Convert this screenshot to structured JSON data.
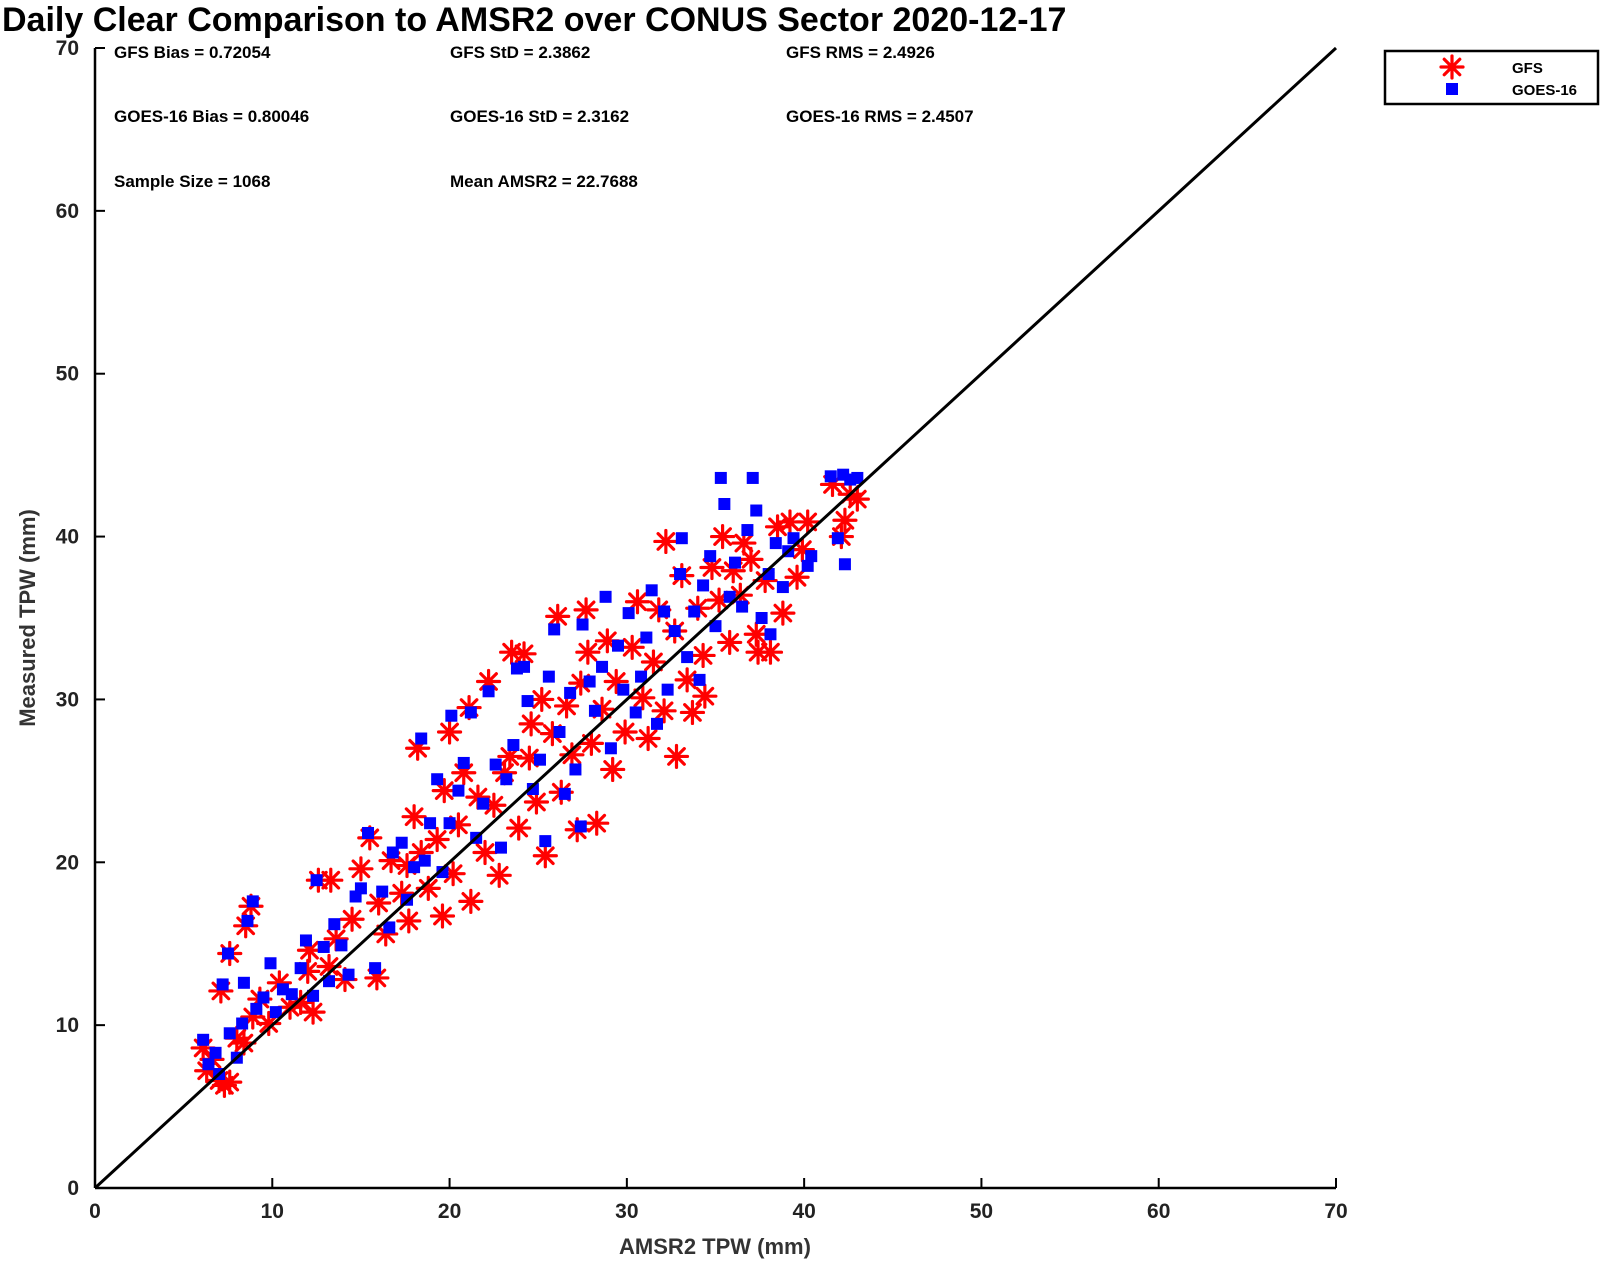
{
  "chart_data": {
    "type": "scatter",
    "title": "Daily Clear Comparison to AMSR2 over CONUS Sector 2020-12-17",
    "xlabel": "AMSR2 TPW (mm)",
    "ylabel": "Measured TPW (mm)",
    "xlim": [
      0,
      70
    ],
    "ylim": [
      0,
      70
    ],
    "xticks": [
      "0",
      "10",
      "20",
      "30",
      "40",
      "50",
      "60",
      "70"
    ],
    "yticks": [
      "0",
      "10",
      "20",
      "30",
      "40",
      "50",
      "60",
      "70"
    ],
    "grid": false,
    "legend_position": "outside-top-right",
    "reference_line": "1:1",
    "stats": [
      "GFS Bias = 0.72054",
      "GFS StD = 2.3862",
      "GFS RMS = 2.4926",
      "GOES-16 Bias = 0.80046",
      "GOES-16 StD = 2.3162",
      "GOES-16 RMS = 2.4507",
      "Sample Size = 1068",
      "Mean AMSR2 = 22.7688"
    ],
    "series": [
      {
        "name": "GFS",
        "color": "#ff0000",
        "marker": "asterisk",
        "points": [
          [
            6.1,
            8.6
          ],
          [
            6.3,
            7.2
          ],
          [
            6.6,
            7.9
          ],
          [
            7.0,
            6.6
          ],
          [
            7.3,
            6.3
          ],
          [
            7.6,
            6.5
          ],
          [
            7.1,
            12.1
          ],
          [
            7.6,
            14.4
          ],
          [
            8.0,
            9.2
          ],
          [
            8.4,
            8.9
          ],
          [
            8.5,
            16.1
          ],
          [
            8.8,
            17.3
          ],
          [
            8.9,
            10.5
          ],
          [
            9.3,
            11.6
          ],
          [
            9.8,
            10.1
          ],
          [
            10.4,
            12.6
          ],
          [
            11.0,
            11.1
          ],
          [
            11.6,
            11.4
          ],
          [
            12.0,
            13.3
          ],
          [
            12.1,
            14.6
          ],
          [
            12.3,
            10.8
          ],
          [
            12.6,
            18.9
          ],
          [
            13.3,
            18.9
          ],
          [
            13.2,
            13.6
          ],
          [
            13.6,
            15.3
          ],
          [
            14.1,
            12.8
          ],
          [
            14.5,
            16.5
          ],
          [
            15.0,
            19.6
          ],
          [
            15.5,
            21.5
          ],
          [
            15.9,
            12.9
          ],
          [
            16.0,
            17.5
          ],
          [
            16.4,
            15.6
          ],
          [
            16.7,
            20.1
          ],
          [
            17.3,
            18.1
          ],
          [
            17.6,
            19.8
          ],
          [
            17.7,
            16.4
          ],
          [
            18.0,
            22.8
          ],
          [
            18.2,
            27.0
          ],
          [
            18.4,
            20.6
          ],
          [
            18.8,
            18.4
          ],
          [
            19.3,
            21.4
          ],
          [
            19.6,
            16.7
          ],
          [
            19.7,
            24.4
          ],
          [
            20.0,
            28.0
          ],
          [
            20.2,
            19.3
          ],
          [
            20.5,
            22.3
          ],
          [
            20.8,
            25.5
          ],
          [
            21.1,
            29.5
          ],
          [
            21.2,
            17.6
          ],
          [
            21.6,
            24.0
          ],
          [
            22.0,
            20.6
          ],
          [
            22.2,
            31.1
          ],
          [
            22.5,
            23.5
          ],
          [
            22.8,
            19.2
          ],
          [
            23.1,
            25.5
          ],
          [
            23.4,
            26.5
          ],
          [
            23.5,
            32.9
          ],
          [
            23.9,
            22.1
          ],
          [
            24.2,
            32.8
          ],
          [
            24.5,
            26.4
          ],
          [
            24.6,
            28.5
          ],
          [
            24.9,
            23.7
          ],
          [
            25.2,
            30.0
          ],
          [
            25.4,
            20.4
          ],
          [
            25.8,
            27.9
          ],
          [
            26.1,
            35.1
          ],
          [
            26.3,
            24.3
          ],
          [
            26.6,
            29.6
          ],
          [
            26.9,
            26.6
          ],
          [
            27.2,
            22.0
          ],
          [
            27.4,
            31.0
          ],
          [
            27.7,
            35.5
          ],
          [
            27.8,
            32.9
          ],
          [
            28.0,
            27.3
          ],
          [
            28.3,
            22.4
          ],
          [
            28.6,
            29.4
          ],
          [
            28.9,
            33.6
          ],
          [
            29.2,
            25.7
          ],
          [
            29.4,
            31.1
          ],
          [
            29.9,
            28.0
          ],
          [
            30.3,
            33.2
          ],
          [
            30.6,
            36.0
          ],
          [
            30.9,
            30.1
          ],
          [
            31.2,
            27.6
          ],
          [
            31.5,
            32.3
          ],
          [
            31.8,
            35.5
          ],
          [
            32.1,
            29.3
          ],
          [
            32.2,
            39.7
          ],
          [
            32.7,
            34.2
          ],
          [
            32.8,
            26.5
          ],
          [
            33.1,
            37.6
          ],
          [
            33.4,
            31.2
          ],
          [
            33.7,
            29.2
          ],
          [
            34.0,
            35.6
          ],
          [
            34.3,
            32.7
          ],
          [
            34.4,
            30.2
          ],
          [
            34.8,
            38.1
          ],
          [
            35.2,
            36.1
          ],
          [
            35.4,
            40.0
          ],
          [
            35.8,
            33.5
          ],
          [
            36.0,
            37.9
          ],
          [
            36.4,
            36.4
          ],
          [
            36.6,
            39.6
          ],
          [
            37.0,
            38.6
          ],
          [
            37.3,
            34.0
          ],
          [
            37.4,
            32.9
          ],
          [
            37.8,
            37.3
          ],
          [
            38.1,
            32.9
          ],
          [
            38.5,
            40.6
          ],
          [
            38.8,
            35.3
          ],
          [
            39.2,
            40.9
          ],
          [
            39.6,
            37.5
          ],
          [
            39.9,
            39.2
          ],
          [
            40.2,
            40.9
          ],
          [
            41.6,
            43.2
          ],
          [
            42.1,
            40.0
          ],
          [
            42.3,
            41.0
          ],
          [
            42.6,
            42.6
          ],
          [
            43.0,
            42.3
          ]
        ]
      },
      {
        "name": "GOES-16",
        "color": "#0000ff",
        "marker": "square",
        "points": [
          [
            6.1,
            9.1
          ],
          [
            6.4,
            7.6
          ],
          [
            6.8,
            8.3
          ],
          [
            7.0,
            7.0
          ],
          [
            7.2,
            12.5
          ],
          [
            7.5,
            14.4
          ],
          [
            7.6,
            9.5
          ],
          [
            8.0,
            8.0
          ],
          [
            8.3,
            10.1
          ],
          [
            8.4,
            12.6
          ],
          [
            8.6,
            16.4
          ],
          [
            8.9,
            17.6
          ],
          [
            9.1,
            11.0
          ],
          [
            9.5,
            11.7
          ],
          [
            9.9,
            13.8
          ],
          [
            10.2,
            10.8
          ],
          [
            10.6,
            12.2
          ],
          [
            11.1,
            11.9
          ],
          [
            11.6,
            13.5
          ],
          [
            11.9,
            15.2
          ],
          [
            12.3,
            11.8
          ],
          [
            12.5,
            18.9
          ],
          [
            12.9,
            14.8
          ],
          [
            13.2,
            12.7
          ],
          [
            13.5,
            16.2
          ],
          [
            13.9,
            14.9
          ],
          [
            14.3,
            13.1
          ],
          [
            14.7,
            17.9
          ],
          [
            15.0,
            18.4
          ],
          [
            15.4,
            21.8
          ],
          [
            15.8,
            13.5
          ],
          [
            16.2,
            18.2
          ],
          [
            16.6,
            16.0
          ],
          [
            16.8,
            20.6
          ],
          [
            17.3,
            21.2
          ],
          [
            17.6,
            17.7
          ],
          [
            18.0,
            19.7
          ],
          [
            18.4,
            27.6
          ],
          [
            18.6,
            20.1
          ],
          [
            18.9,
            22.4
          ],
          [
            19.3,
            25.1
          ],
          [
            19.6,
            19.4
          ],
          [
            20.0,
            22.4
          ],
          [
            20.1,
            29.0
          ],
          [
            20.5,
            24.4
          ],
          [
            20.8,
            26.1
          ],
          [
            21.2,
            29.2
          ],
          [
            21.5,
            21.5
          ],
          [
            21.9,
            23.6
          ],
          [
            22.2,
            30.5
          ],
          [
            22.6,
            26.0
          ],
          [
            22.9,
            20.9
          ],
          [
            23.2,
            25.1
          ],
          [
            23.6,
            27.2
          ],
          [
            23.8,
            31.9
          ],
          [
            24.2,
            32.0
          ],
          [
            24.4,
            29.9
          ],
          [
            24.7,
            24.5
          ],
          [
            25.1,
            26.3
          ],
          [
            25.4,
            21.3
          ],
          [
            25.6,
            31.4
          ],
          [
            25.9,
            34.3
          ],
          [
            26.2,
            28.0
          ],
          [
            26.5,
            24.2
          ],
          [
            26.8,
            30.4
          ],
          [
            27.1,
            25.7
          ],
          [
            27.4,
            22.2
          ],
          [
            27.5,
            34.6
          ],
          [
            27.9,
            31.1
          ],
          [
            28.2,
            29.3
          ],
          [
            28.6,
            32.0
          ],
          [
            28.8,
            36.3
          ],
          [
            29.1,
            27.0
          ],
          [
            29.5,
            33.3
          ],
          [
            29.8,
            30.6
          ],
          [
            30.1,
            35.3
          ],
          [
            30.5,
            29.2
          ],
          [
            30.8,
            31.4
          ],
          [
            31.1,
            33.8
          ],
          [
            31.4,
            36.7
          ],
          [
            31.7,
            28.5
          ],
          [
            32.1,
            35.4
          ],
          [
            32.3,
            30.6
          ],
          [
            32.7,
            34.2
          ],
          [
            33.0,
            37.7
          ],
          [
            33.1,
            39.9
          ],
          [
            33.4,
            32.6
          ],
          [
            33.8,
            35.4
          ],
          [
            34.1,
            31.2
          ],
          [
            34.3,
            37.0
          ],
          [
            34.7,
            38.8
          ],
          [
            35.0,
            34.5
          ],
          [
            35.3,
            43.6
          ],
          [
            35.5,
            42.0
          ],
          [
            35.8,
            36.3
          ],
          [
            36.1,
            38.4
          ],
          [
            36.5,
            35.7
          ],
          [
            36.8,
            40.4
          ],
          [
            37.1,
            43.6
          ],
          [
            37.3,
            41.6
          ],
          [
            37.6,
            35.0
          ],
          [
            38.0,
            37.7
          ],
          [
            38.1,
            34.0
          ],
          [
            38.4,
            39.6
          ],
          [
            38.8,
            36.9
          ],
          [
            39.1,
            39.1
          ],
          [
            39.4,
            39.9
          ],
          [
            40.2,
            38.2
          ],
          [
            40.4,
            38.8
          ],
          [
            41.5,
            43.7
          ],
          [
            41.9,
            39.9
          ],
          [
            42.2,
            43.8
          ],
          [
            42.3,
            38.3
          ],
          [
            42.6,
            43.5
          ],
          [
            43.0,
            43.6
          ]
        ]
      }
    ]
  }
}
